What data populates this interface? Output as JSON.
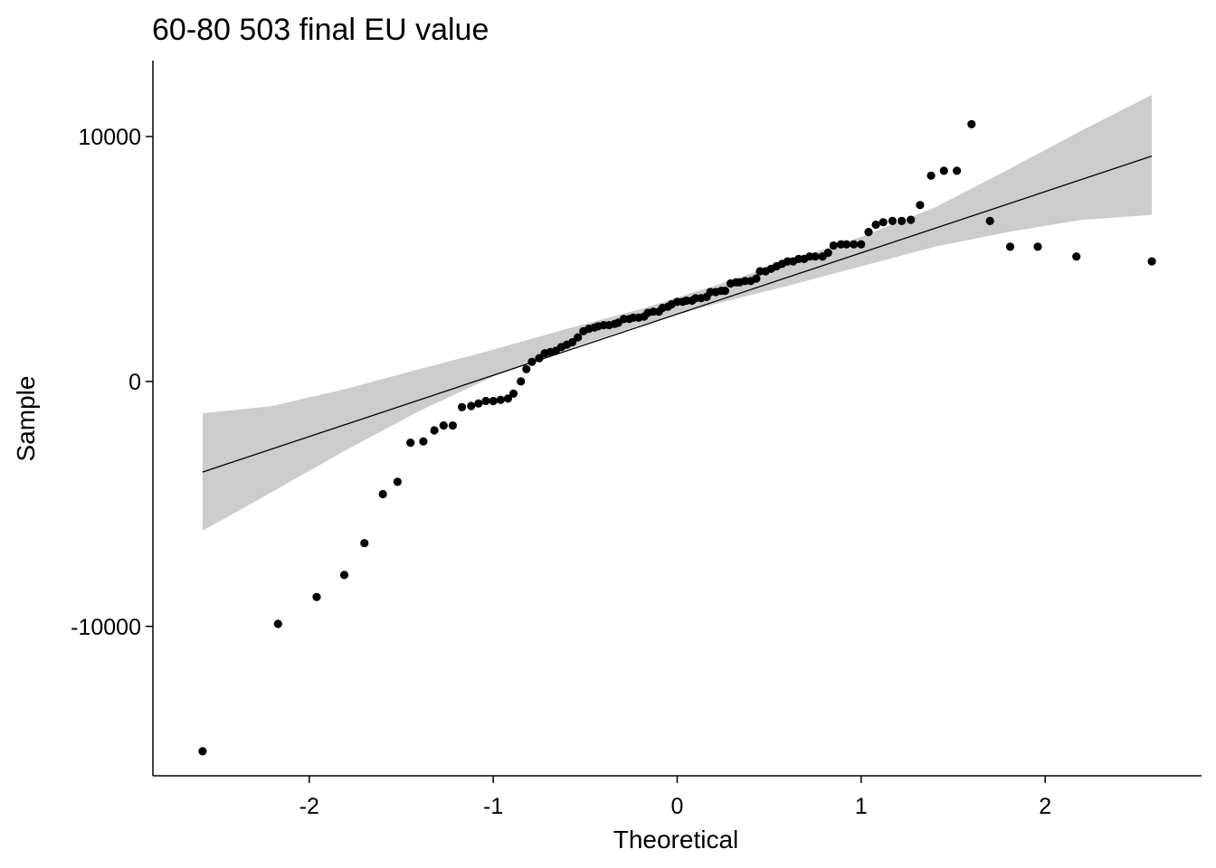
{
  "chart_data": {
    "type": "scatter",
    "title": "60-80 503 final EU value",
    "xlabel": "Theoretical",
    "ylabel": "Sample",
    "xlim": [
      -2.85,
      2.85
    ],
    "ylim": [
      -16100,
      13100
    ],
    "x_ticks": [
      -2,
      -1,
      0,
      1,
      2
    ],
    "x_tick_labels": [
      "-2",
      "-1",
      "0",
      "1",
      "2"
    ],
    "y_ticks": [
      -10000,
      0,
      10000
    ],
    "y_tick_labels": [
      "-10000",
      "0",
      "10000"
    ],
    "grid": false,
    "colors": {
      "points": "#000000",
      "line": "#000000",
      "band": "#cccccc"
    },
    "reference_line": {
      "x": [
        -2.58,
        2.58
      ],
      "y": [
        -3700,
        9200
      ]
    },
    "confidence_band": {
      "x": [
        -2.58,
        -2.2,
        -1.8,
        -1.4,
        -1.0,
        -0.6,
        -0.2,
        0.2,
        0.6,
        1.0,
        1.4,
        1.8,
        2.2,
        2.58
      ],
      "upper": [
        -1300,
        -1000,
        -300,
        500,
        1300,
        2150,
        2950,
        3900,
        4900,
        5900,
        7100,
        8650,
        10250,
        11700
      ],
      "lower": [
        -6100,
        -4500,
        -2800,
        -1200,
        200,
        1300,
        2300,
        3150,
        3900,
        4700,
        5500,
        6100,
        6600,
        6800
      ]
    },
    "points": {
      "x": [
        -2.58,
        -2.17,
        -1.96,
        -1.81,
        -1.7,
        -1.6,
        -1.52,
        -1.45,
        -1.38,
        -1.32,
        -1.27,
        -1.22,
        -1.17,
        -1.12,
        -1.08,
        -1.04,
        -1.0,
        -0.96,
        -0.92,
        -0.89,
        -0.85,
        -0.82,
        -0.79,
        -0.75,
        -0.72,
        -0.69,
        -0.66,
        -0.63,
        -0.6,
        -0.57,
        -0.54,
        -0.51,
        -0.48,
        -0.45,
        -0.43,
        -0.4,
        -0.37,
        -0.34,
        -0.32,
        -0.29,
        -0.26,
        -0.24,
        -0.21,
        -0.18,
        -0.16,
        -0.13,
        -0.1,
        -0.08,
        -0.05,
        -0.03,
        0.0,
        0.03,
        0.05,
        0.08,
        0.1,
        0.13,
        0.16,
        0.18,
        0.21,
        0.24,
        0.26,
        0.29,
        0.32,
        0.34,
        0.37,
        0.4,
        0.43,
        0.45,
        0.48,
        0.51,
        0.54,
        0.57,
        0.6,
        0.63,
        0.66,
        0.69,
        0.72,
        0.75,
        0.79,
        0.82,
        0.85,
        0.89,
        0.92,
        0.96,
        1.0,
        1.04,
        1.08,
        1.12,
        1.17,
        1.22,
        1.27,
        1.32,
        1.38,
        1.45,
        1.52,
        1.6,
        1.7,
        1.81,
        1.96,
        2.17,
        2.58
      ],
      "y": [
        -15100,
        -9900,
        -8800,
        -7900,
        -6600,
        -4600,
        -4100,
        -2500,
        -2450,
        -2000,
        -1800,
        -1800,
        -1050,
        -1000,
        -900,
        -800,
        -800,
        -750,
        -700,
        -500,
        0,
        500,
        800,
        950,
        1150,
        1200,
        1250,
        1400,
        1500,
        1600,
        1800,
        2050,
        2150,
        2200,
        2250,
        2300,
        2300,
        2350,
        2400,
        2550,
        2550,
        2600,
        2600,
        2650,
        2800,
        2850,
        2850,
        3000,
        3050,
        3150,
        3250,
        3250,
        3300,
        3300,
        3400,
        3400,
        3450,
        3650,
        3650,
        3700,
        3700,
        4000,
        4050,
        4050,
        4100,
        4100,
        4200,
        4500,
        4500,
        4600,
        4700,
        4800,
        4900,
        4900,
        5000,
        5000,
        5100,
        5100,
        5100,
        5250,
        5550,
        5600,
        5600,
        5600,
        5600,
        6100,
        6400,
        6500,
        6550,
        6550,
        6600,
        7200,
        8400,
        8600,
        8600,
        10500,
        6550,
        5500,
        5500,
        5100,
        4900
      ]
    }
  }
}
